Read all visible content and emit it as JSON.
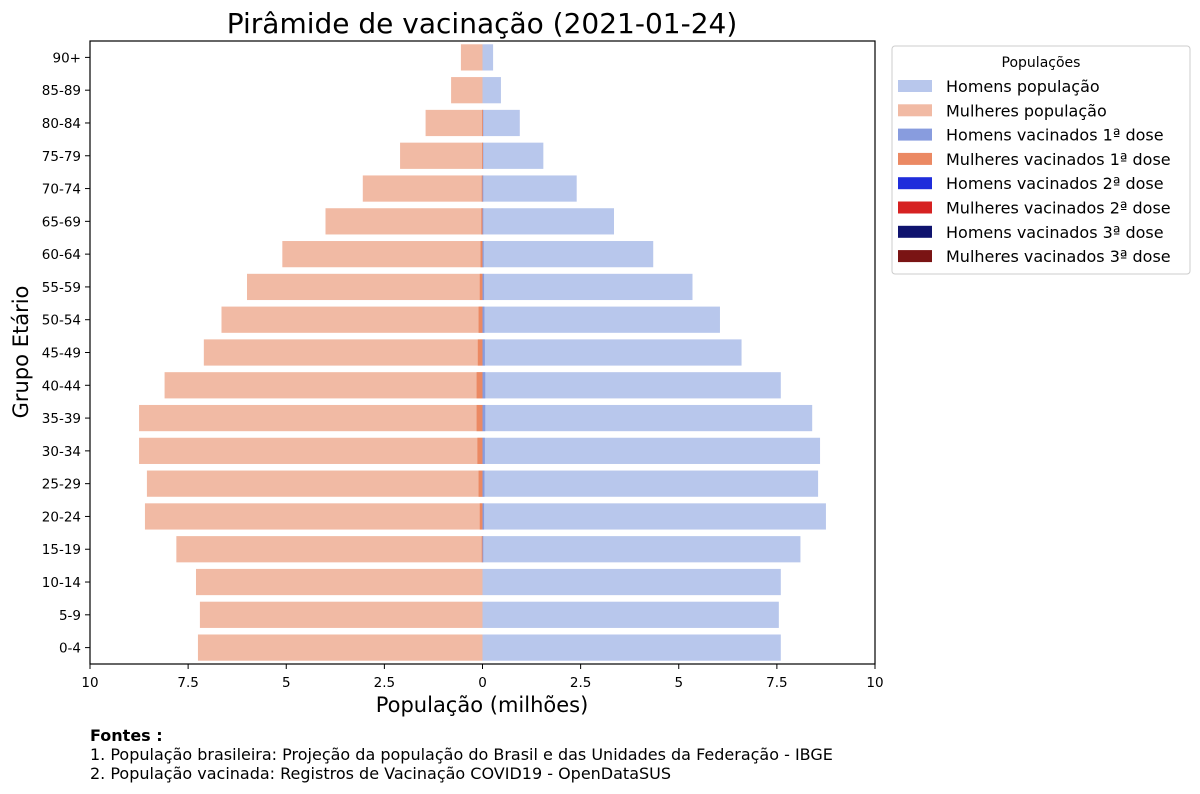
{
  "chart_data": {
    "type": "bar",
    "orientation": "horizontal",
    "title": "Pirâmide de vacinação (2021-01-24)",
    "xlabel": "População (milhões)",
    "ylabel": "Grupo Etário",
    "xlim": [
      -10,
      10
    ],
    "xticks": [
      -10,
      -7.5,
      -5,
      -2.5,
      0,
      2.5,
      5,
      7.5,
      10
    ],
    "xtick_labels": [
      "10",
      "7.5",
      "5",
      "2.5",
      "0",
      "2.5",
      "5",
      "7.5",
      "10"
    ],
    "categories": [
      "0-4",
      "5-9",
      "10-14",
      "15-19",
      "20-24",
      "25-29",
      "30-34",
      "35-39",
      "40-44",
      "45-49",
      "50-54",
      "55-59",
      "60-64",
      "65-69",
      "70-74",
      "75-79",
      "80-84",
      "85-89",
      "90+"
    ],
    "legend": {
      "title": "Populações",
      "placement": "upper right outside"
    },
    "series": [
      {
        "name": "Homens população",
        "side": "right",
        "color": "#b8c7ec",
        "values": [
          7.6,
          7.55,
          7.6,
          8.1,
          8.75,
          8.55,
          8.6,
          8.4,
          7.6,
          6.6,
          6.05,
          5.35,
          4.35,
          3.35,
          2.4,
          1.55,
          0.95,
          0.47,
          0.27
        ]
      },
      {
        "name": "Mulheres população",
        "side": "left",
        "color": "#f1baa4",
        "values": [
          7.25,
          7.2,
          7.3,
          7.8,
          8.6,
          8.55,
          8.75,
          8.75,
          8.1,
          7.1,
          6.65,
          6.0,
          5.1,
          4.0,
          3.05,
          2.1,
          1.45,
          0.8,
          0.55
        ]
      },
      {
        "name": "Homens vacinados 1ª dose",
        "side": "right",
        "color": "#889cde",
        "values": [
          0,
          0,
          0,
          0.01,
          0.04,
          0.05,
          0.06,
          0.07,
          0.07,
          0.06,
          0.05,
          0.04,
          0.03,
          0.02,
          0.02,
          0.01,
          0.01,
          0,
          0
        ]
      },
      {
        "name": "Mulheres vacinados 1ª dose",
        "side": "left",
        "color": "#eb8963",
        "values": [
          0,
          0,
          0,
          0.02,
          0.07,
          0.1,
          0.13,
          0.15,
          0.15,
          0.12,
          0.1,
          0.07,
          0.05,
          0.03,
          0.02,
          0.01,
          0.01,
          0,
          0
        ]
      },
      {
        "name": "Homens vacinados 2ª dose",
        "side": "right",
        "color": "#1f2ddb",
        "values": [
          0,
          0,
          0,
          0,
          0,
          0,
          0,
          0,
          0,
          0,
          0,
          0,
          0,
          0,
          0,
          0,
          0,
          0,
          0
        ]
      },
      {
        "name": "Mulheres vacinados 2ª dose",
        "side": "left",
        "color": "#d62121",
        "values": [
          0,
          0,
          0,
          0,
          0,
          0,
          0,
          0,
          0,
          0,
          0,
          0,
          0,
          0,
          0,
          0,
          0,
          0,
          0
        ]
      },
      {
        "name": "Homens vacinados 3ª dose",
        "side": "right",
        "color": "#0f136e",
        "values": [
          0,
          0,
          0,
          0,
          0,
          0,
          0,
          0,
          0,
          0,
          0,
          0,
          0,
          0,
          0,
          0,
          0,
          0,
          0
        ]
      },
      {
        "name": "Mulheres vacinados 3ª dose",
        "side": "left",
        "color": "#7a1414",
        "values": [
          0,
          0,
          0,
          0,
          0,
          0,
          0,
          0,
          0,
          0,
          0,
          0,
          0,
          0,
          0,
          0,
          0,
          0,
          0
        ]
      }
    ]
  },
  "sources": {
    "heading": "Fontes :",
    "lines": [
      "1. População brasileira: Projeção da população do Brasil e das Unidades da Federação - IBGE",
      "2. População vacinada: Registros de Vacinação COVID19 - OpenDataSUS"
    ]
  }
}
